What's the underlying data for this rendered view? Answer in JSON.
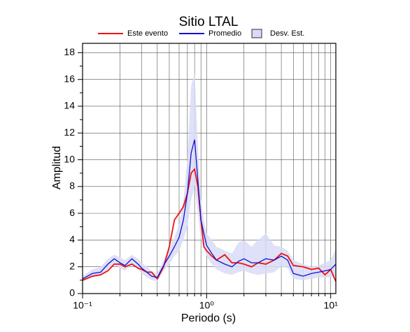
{
  "chart_data": {
    "type": "line",
    "title": "Sitio LTAL",
    "xlabel": "Periodo (s)",
    "ylabel": "Amplitud",
    "xscale": "log",
    "xlim": [
      0.1,
      11
    ],
    "ylim": [
      0,
      18.7
    ],
    "xticks": [
      {
        "value": 0.1,
        "label": "10⁻¹"
      },
      {
        "value": 1,
        "label": "10⁰"
      },
      {
        "value": 10,
        "label": "10¹"
      }
    ],
    "xminorticks": [
      0.2,
      0.3,
      0.4,
      0.5,
      0.6,
      0.7,
      0.8,
      0.9,
      2,
      3,
      4,
      5,
      6,
      7,
      8,
      9
    ],
    "yticks": [
      0,
      2,
      4,
      6,
      8,
      10,
      12,
      14,
      16,
      18
    ],
    "yminorticks": [
      1,
      3,
      5,
      7,
      9,
      11,
      13,
      15,
      17
    ],
    "grid": true,
    "legend": "top",
    "x": [
      0.1,
      0.12,
      0.14,
      0.16,
      0.18,
      0.2,
      0.22,
      0.25,
      0.28,
      0.3,
      0.33,
      0.36,
      0.4,
      0.45,
      0.5,
      0.55,
      0.6,
      0.65,
      0.7,
      0.75,
      0.8,
      0.85,
      0.9,
      0.95,
      1.0,
      1.1,
      1.2,
      1.4,
      1.6,
      1.8,
      2,
      2.3,
      2.6,
      3,
      3.5,
      4,
      4.5,
      5,
      6,
      7,
      8,
      9,
      10,
      11
    ],
    "band": {
      "name": "Desv. Est.",
      "color": "#d8dcf6",
      "upper": [
        1.3,
        1.8,
        2.0,
        2.6,
        2.9,
        2.7,
        2.5,
        2.9,
        2.6,
        2.3,
        2.0,
        1.7,
        1.5,
        2.5,
        3.4,
        4.2,
        5.2,
        7,
        10,
        15.5,
        16.5,
        11,
        7,
        5.5,
        4.5,
        4,
        3.5,
        3.2,
        3,
        3.8,
        4,
        3.5,
        4,
        4.5,
        3.6,
        3.5,
        3.2,
        2.5,
        2.2,
        2,
        2.1,
        2.3,
        2.5,
        3.3
      ],
      "lower": [
        0.9,
        1.2,
        1.3,
        1.8,
        2.2,
        1.9,
        1.7,
        2.2,
        1.8,
        1.5,
        1.2,
        1.0,
        0.9,
        1.7,
        2.2,
        2.8,
        3.2,
        4,
        5,
        7,
        8,
        6,
        4,
        3.5,
        2.8,
        2.2,
        1.8,
        1.5,
        1.4,
        1.6,
        1.7,
        1.5,
        1.4,
        1.5,
        1.6,
        2.0,
        1.9,
        1.1,
        1.0,
        1.1,
        1.2,
        1.2,
        1.2,
        1.3
      ]
    },
    "series": [
      {
        "name": "Este evento",
        "color": "#ee1111",
        "values": [
          1.0,
          1.3,
          1.4,
          1.7,
          2.2,
          2.2,
          2.0,
          2.2,
          1.9,
          1.8,
          1.6,
          1.6,
          1.1,
          2.0,
          3.5,
          5.5,
          6.0,
          6.5,
          7.5,
          9.0,
          9.3,
          8.0,
          5.5,
          3.5,
          3.2,
          2.8,
          2.5,
          2.9,
          2.3,
          2.3,
          2.2,
          2.0,
          2.3,
          2.2,
          2.5,
          3.0,
          2.8,
          2.1,
          2.0,
          1.8,
          1.9,
          1.4,
          1.8,
          0.9
        ]
      },
      {
        "name": "Promedio",
        "color": "#1111cc",
        "values": [
          1.1,
          1.5,
          1.6,
          2.2,
          2.6,
          2.3,
          2.1,
          2.6,
          2.2,
          1.9,
          1.6,
          1.3,
          1.2,
          2.1,
          2.8,
          3.5,
          4.2,
          5.5,
          7.5,
          10.5,
          11.5,
          8.5,
          5.5,
          4.5,
          3.6,
          3.0,
          2.5,
          2.2,
          2.0,
          2.4,
          2.6,
          2.3,
          2.3,
          2.6,
          2.5,
          2.8,
          2.5,
          1.5,
          1.3,
          1.5,
          1.6,
          1.7,
          1.8,
          2.2
        ]
      }
    ]
  }
}
